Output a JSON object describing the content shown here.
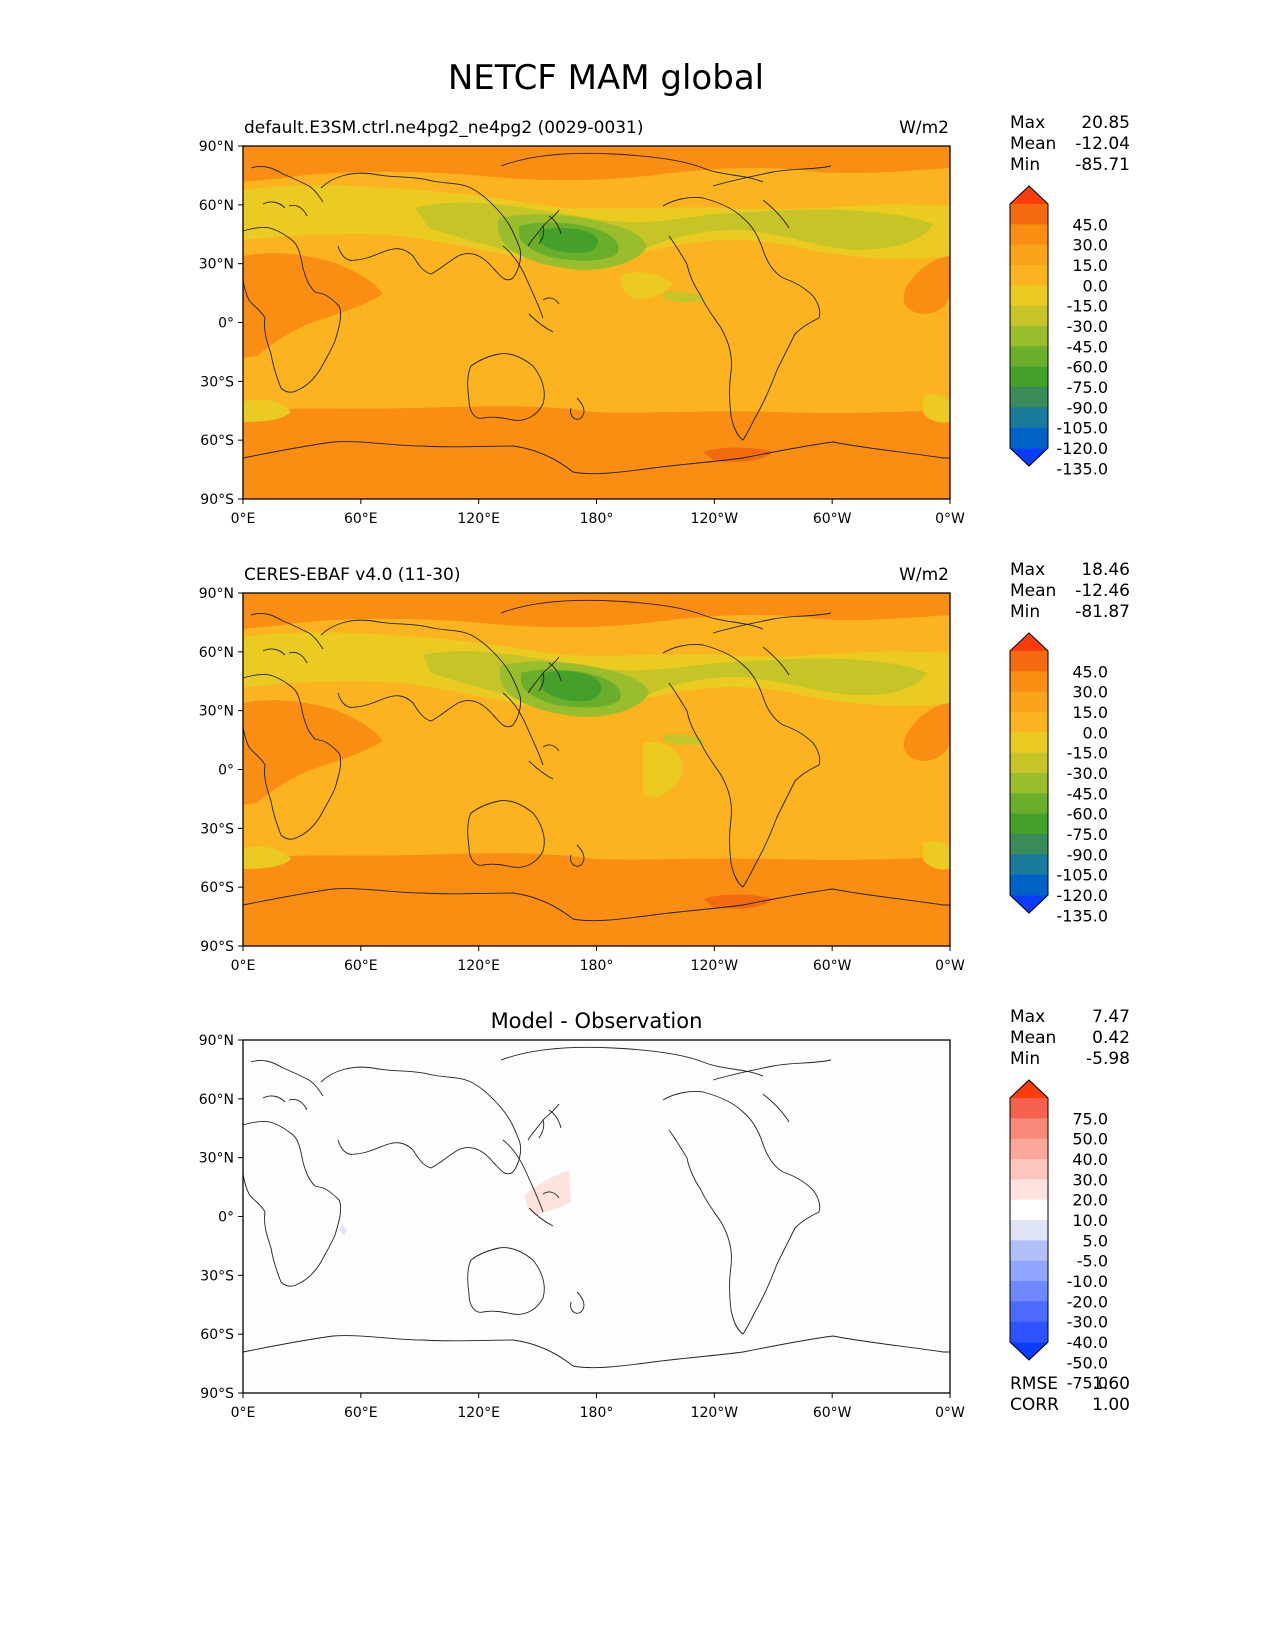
{
  "title": "NETCF MAM global",
  "colors": {
    "fill_main": "#fbb41f",
    "fill_orange": "#f98e13",
    "fill_deep_orange": "#f36a10",
    "fill_yellow": "#ebcb22",
    "fill_yellowgreen": "#c6c426",
    "fill_green_light": "#99bd2d",
    "fill_green": "#6aae2c",
    "fill_green_dark": "#44a02a",
    "diff_pink": "#fde2de",
    "diff_blue": "#dfe4f7"
  },
  "axes": {
    "lat_ticks": [
      "90°N",
      "60°N",
      "30°N",
      "0°",
      "30°S",
      "60°S",
      "90°S"
    ],
    "lon_ticks": [
      "0°E",
      "60°E",
      "120°E",
      "180°",
      "120°W",
      "60°W",
      "0°W"
    ]
  },
  "panels": [
    {
      "left_title": "default.E3SM.ctrl.ne4pg2_ne4pg2 (0029-0031)",
      "center_title": "",
      "units": "W/m2",
      "stats": {
        "max_label": "Max",
        "max": "20.85",
        "mean_label": "Mean",
        "mean": "-12.04",
        "min_label": "Min",
        "min": "-85.71"
      }
    },
    {
      "left_title": "CERES-EBAF v4.0 (11-30)",
      "center_title": "",
      "units": "W/m2",
      "stats": {
        "max_label": "Max",
        "max": "18.46",
        "mean_label": "Mean",
        "mean": "-12.46",
        "min_label": "Min",
        "min": "-81.87"
      }
    },
    {
      "left_title": "",
      "center_title": "Model - Observation",
      "units": "",
      "stats": {
        "max_label": "Max",
        "max": "7.47",
        "mean_label": "Mean",
        "mean": "0.42",
        "min_label": "Min",
        "min": "-5.98"
      },
      "metrics": {
        "rmse_label": "RMSE",
        "rmse": "1.60",
        "corr_label": "CORR",
        "corr": "1.00"
      }
    }
  ],
  "colorbar_main": {
    "colors": [
      "#0a3cff",
      "#0062c6",
      "#1a7a9c",
      "#3a8a5a",
      "#44a02a",
      "#6aae2c",
      "#99bd2d",
      "#c6c426",
      "#ebcb22",
      "#fbb41f",
      "#fca419",
      "#f98e13",
      "#f36a10",
      "#ff3c0a"
    ],
    "labels": [
      "45.0",
      "30.0",
      "15.0",
      "0.0",
      "-15.0",
      "-30.0",
      "-45.0",
      "-60.0",
      "-75.0",
      "-90.0",
      "-105.0",
      "-120.0",
      "-135.0"
    ]
  },
  "colorbar_diff": {
    "colors": [
      "#0a3cff",
      "#2e52ff",
      "#4d6aff",
      "#6f88ff",
      "#91a4ff",
      "#b3bff9",
      "#dfe4f7",
      "#ffffff",
      "#fde2de",
      "#fdc5bc",
      "#fba89a",
      "#f98878",
      "#f6614f",
      "#ff3c0a"
    ],
    "labels": [
      "75.0",
      "50.0",
      "40.0",
      "30.0",
      "20.0",
      "10.0",
      "5.0",
      "-5.0",
      "-10.0",
      "-20.0",
      "-30.0",
      "-40.0",
      "-50.0",
      "-75.0"
    ]
  }
}
